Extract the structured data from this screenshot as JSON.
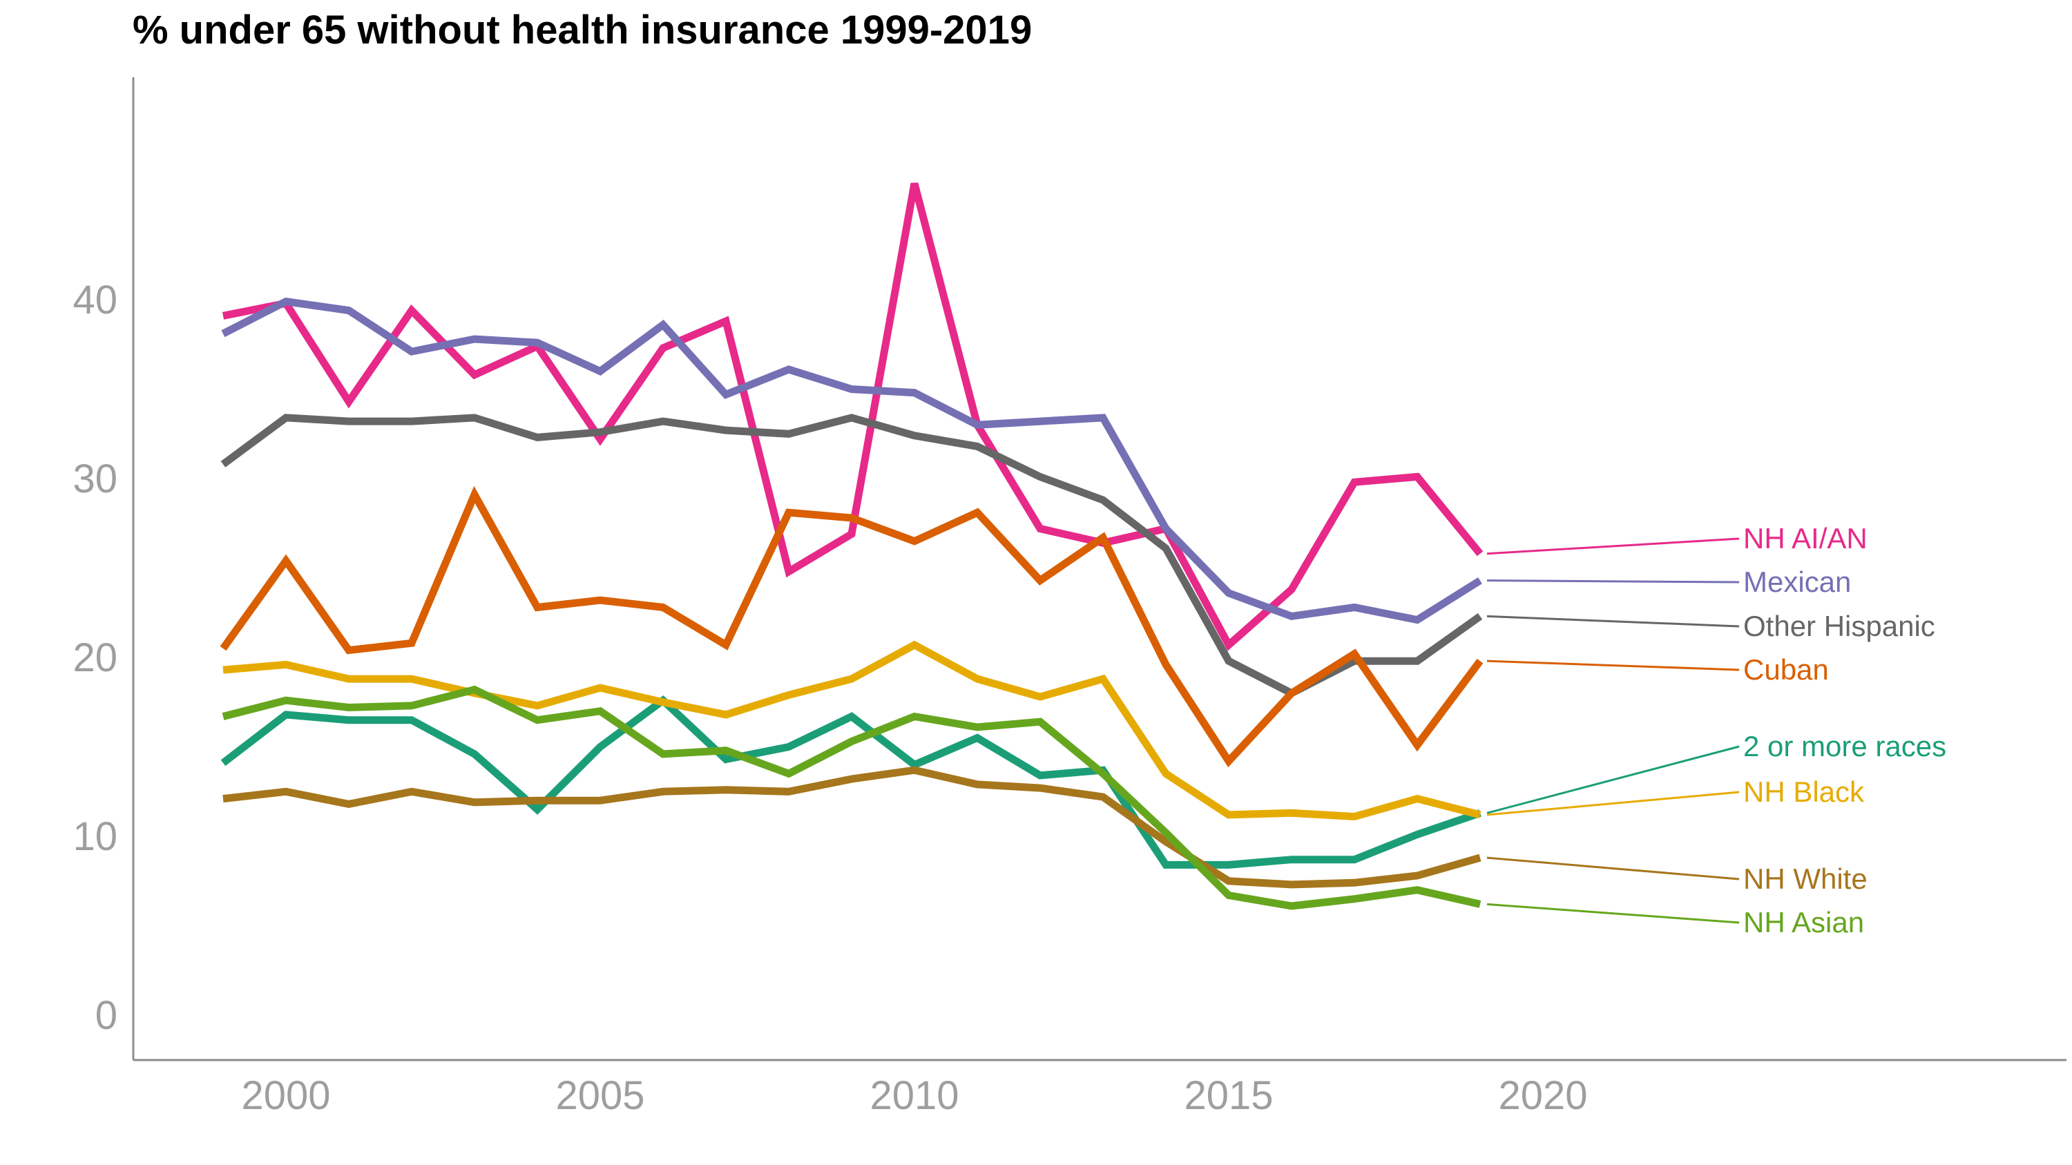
{
  "chart_data": {
    "type": "line",
    "title": "% under 65 without health insurance 1999-2019",
    "xlabel": "",
    "ylabel": "",
    "xlim": [
      1999,
      2019
    ],
    "ylim": [
      0,
      50
    ],
    "x_ticks": [
      2000,
      2005,
      2010,
      2015,
      2020
    ],
    "y_ticks": [
      0,
      10,
      20,
      30,
      40
    ],
    "grid": false,
    "legend": "direct labels at right end",
    "x": [
      1999,
      2000,
      2001,
      2002,
      2003,
      2004,
      2005,
      2006,
      2007,
      2008,
      2009,
      2010,
      2011,
      2012,
      2013,
      2014,
      2015,
      2016,
      2017,
      2018,
      2019
    ],
    "series": [
      {
        "name": "NH AI/AN",
        "color": "#e7298a",
        "values": [
          39.1,
          39.8,
          34.3,
          39.4,
          35.8,
          37.4,
          32.2,
          37.3,
          38.8,
          24.8,
          26.9,
          46.5,
          33.0,
          27.2,
          26.4,
          27.2,
          20.7,
          23.8,
          29.8,
          30.1,
          25.8
        ]
      },
      {
        "name": "Mexican",
        "color": "#7570b3",
        "values": [
          38.1,
          39.9,
          39.4,
          37.1,
          37.8,
          37.6,
          36.0,
          38.6,
          34.7,
          36.1,
          35.0,
          34.8,
          33.0,
          33.2,
          33.4,
          27.2,
          23.6,
          22.3,
          22.8,
          22.1,
          24.3
        ]
      },
      {
        "name": "Other Hispanic",
        "color": "#666666",
        "values": [
          30.8,
          33.4,
          33.2,
          33.2,
          33.4,
          32.3,
          32.6,
          33.2,
          32.7,
          32.5,
          33.4,
          32.4,
          31.8,
          30.1,
          28.8,
          26.1,
          19.8,
          18.0,
          19.8,
          19.8,
          22.3
        ]
      },
      {
        "name": "Cuban",
        "color": "#d95f02",
        "values": [
          20.5,
          25.4,
          20.4,
          20.8,
          29.1,
          22.8,
          23.2,
          22.8,
          20.7,
          28.1,
          27.8,
          26.5,
          28.1,
          24.3,
          26.7,
          19.6,
          14.2,
          18.0,
          20.2,
          15.1,
          19.8
        ]
      },
      {
        "name": "2 or more races",
        "color": "#1b9e77",
        "values": [
          14.1,
          16.8,
          16.5,
          16.5,
          14.6,
          11.5,
          15.0,
          17.6,
          14.3,
          15.0,
          16.7,
          14.0,
          15.5,
          13.4,
          13.7,
          8.4,
          8.4,
          8.7,
          8.7,
          10.1,
          11.3
        ]
      },
      {
        "name": "NH Black",
        "color": "#e6ab02",
        "values": [
          19.3,
          19.6,
          18.8,
          18.8,
          18.0,
          17.3,
          18.3,
          17.5,
          16.8,
          17.9,
          18.8,
          20.7,
          18.8,
          17.8,
          18.8,
          13.5,
          11.2,
          11.3,
          11.1,
          12.1,
          11.2
        ]
      },
      {
        "name": "NH White",
        "color": "#a6761d",
        "values": [
          12.1,
          12.5,
          11.8,
          12.5,
          11.9,
          12.0,
          12.0,
          12.5,
          12.6,
          12.5,
          13.2,
          13.7,
          12.9,
          12.7,
          12.2,
          9.7,
          7.5,
          7.3,
          7.4,
          7.8,
          8.8
        ]
      },
      {
        "name": "NH Asian",
        "color": "#66a61e",
        "values": [
          16.7,
          17.6,
          17.2,
          17.3,
          18.2,
          16.5,
          17.0,
          14.6,
          14.8,
          13.5,
          15.3,
          16.7,
          16.1,
          16.4,
          13.5,
          10.2,
          6.7,
          6.1,
          6.5,
          7.0,
          6.2
        ]
      }
    ]
  }
}
